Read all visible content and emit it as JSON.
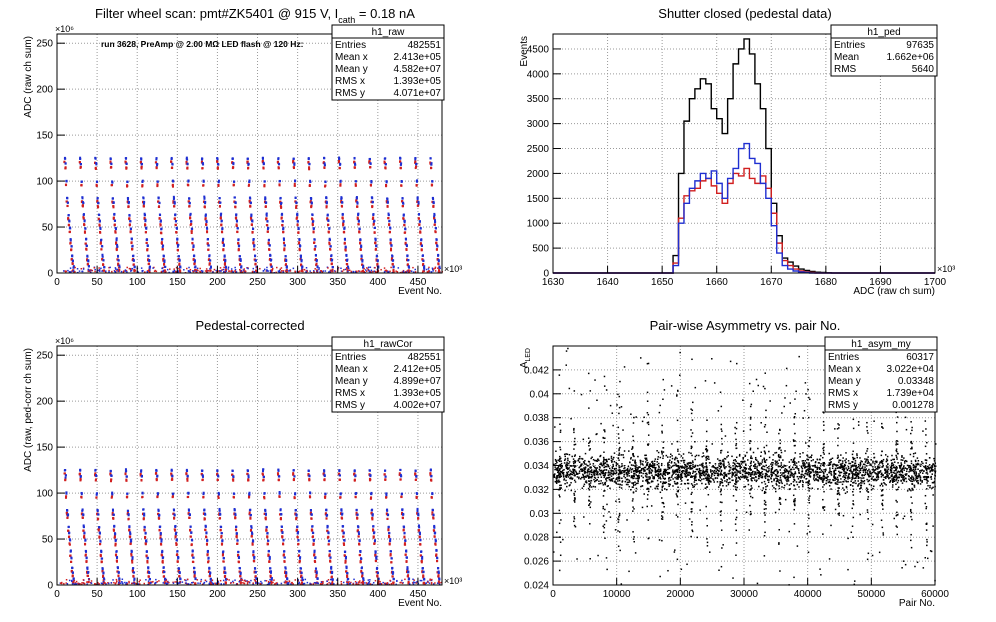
{
  "colors": {
    "black": "#000000",
    "red": "#d11f1f",
    "blue": "#1f2fd1",
    "grid": "#9a9a9a"
  },
  "chart_data": [
    {
      "id": "raw",
      "type": "scatter",
      "title_parts": [
        "Filter wheel scan: pmt#ZK5401 @   915 V, I",
        "cath",
        " = 0.18 nA"
      ],
      "xlabel": "Event No.",
      "ylabel": "ADC (raw ch sum)",
      "x_exponent": "×10³",
      "y_exponent": "×10⁶",
      "annotation": "run 3628, PreAmp @ 2.00 MΩ LED flash @  120 Hz:",
      "grid": true,
      "xlim": [
        0,
        480
      ],
      "ylim": [
        0,
        260
      ],
      "xticks": [
        0,
        50,
        100,
        150,
        200,
        250,
        300,
        350,
        400,
        450
      ],
      "yticks": [
        0,
        50,
        100,
        150,
        200,
        250
      ],
      "stats": {
        "name": "h1_raw",
        "rows": [
          [
            "Entries",
            "482551"
          ],
          [
            "Mean x",
            "2.413e+05"
          ],
          [
            "Mean y",
            "4.582e+07"
          ],
          [
            "RMS x",
            "1.393e+05"
          ],
          [
            "RMS y",
            "4.071e+07"
          ]
        ]
      },
      "pattern": {
        "period": 19,
        "first_cycle_start": 8,
        "cycles": 25,
        "levels": [
          123,
          117,
          98,
          80,
          75,
          62,
          55,
          47,
          35,
          28,
          17,
          12,
          5
        ],
        "series_colors": [
          "red",
          "blue"
        ]
      }
    },
    {
      "id": "ped",
      "type": "line",
      "title": "Shutter closed (pedestal data)",
      "xlabel": "ADC (raw ch sum)",
      "ylabel": "Events",
      "x_exponent": "×10³",
      "grid": true,
      "xlim": [
        1630,
        1700
      ],
      "ylim": [
        0,
        4800
      ],
      "xticks": [
        1630,
        1640,
        1650,
        1660,
        1670,
        1680,
        1690,
        1700
      ],
      "yticks": [
        0,
        500,
        1000,
        1500,
        2000,
        2500,
        3000,
        3500,
        4000,
        4500
      ],
      "stats": {
        "name": "h1_ped",
        "rows": [
          [
            "Entries",
            "97635"
          ],
          [
            "Mean",
            "1.662e+06"
          ],
          [
            "RMS",
            "5640"
          ]
        ]
      },
      "bins": [
        1650,
        1651,
        1652,
        1653,
        1654,
        1655,
        1656,
        1657,
        1658,
        1659,
        1660,
        1661,
        1662,
        1663,
        1664,
        1665,
        1666,
        1667,
        1668,
        1669,
        1670,
        1671,
        1672,
        1673,
        1674,
        1675,
        1676,
        1677,
        1678,
        1679,
        1680,
        1681
      ],
      "series": [
        {
          "color": "black",
          "values": [
            0,
            0,
            350,
            2000,
            3050,
            3500,
            3700,
            3900,
            3800,
            3300,
            3100,
            2800,
            3500,
            4200,
            4500,
            4700,
            4400,
            3800,
            3300,
            2500,
            1400,
            750,
            300,
            220,
            140,
            80,
            50,
            30,
            15,
            10,
            5,
            0
          ]
        },
        {
          "color": "red",
          "values": [
            0,
            0,
            200,
            1100,
            1550,
            1650,
            1700,
            1850,
            1900,
            1750,
            1600,
            1400,
            1800,
            2000,
            1950,
            2100,
            1900,
            1800,
            1950,
            1700,
            1200,
            600,
            250,
            150,
            80,
            40,
            20,
            10,
            0,
            0,
            0,
            0
          ]
        },
        {
          "color": "blue",
          "values": [
            0,
            0,
            150,
            1000,
            1400,
            1700,
            1850,
            2000,
            1900,
            2050,
            1800,
            1500,
            1900,
            2100,
            2500,
            2600,
            2300,
            2200,
            1800,
            1500,
            950,
            400,
            150,
            80,
            40,
            20,
            10,
            0,
            0,
            0,
            0,
            0
          ]
        }
      ]
    },
    {
      "id": "rawcor",
      "type": "scatter",
      "title": "Pedestal-corrected",
      "xlabel": "Event No.",
      "ylabel": "ADC (raw, ped-corr ch sum)",
      "x_exponent": "×10³",
      "y_exponent": "×10⁶",
      "grid": true,
      "xlim": [
        0,
        480
      ],
      "ylim": [
        0,
        260
      ],
      "xticks": [
        0,
        50,
        100,
        150,
        200,
        250,
        300,
        350,
        400,
        450
      ],
      "yticks": [
        0,
        50,
        100,
        150,
        200,
        250
      ],
      "stats": {
        "name": "h1_rawCor",
        "rows": [
          [
            "Entries",
            "482551"
          ],
          [
            "Mean x",
            "2.412e+05"
          ],
          [
            "Mean y",
            "4.899e+07"
          ],
          [
            "RMS x",
            "1.393e+05"
          ],
          [
            "RMS y",
            "4.002e+07"
          ]
        ]
      },
      "pattern": {
        "period": 19,
        "first_cycle_start": 8,
        "cycles": 25,
        "levels": [
          123,
          117,
          98,
          80,
          75,
          62,
          55,
          47,
          35,
          28,
          17,
          12,
          5
        ],
        "series_colors": [
          "red",
          "blue"
        ]
      }
    },
    {
      "id": "asym",
      "type": "scatter",
      "title": "Pair-wise Asymmetry vs. pair No.",
      "xlabel": "Pair No.",
      "ylabel": "A",
      "ylabel_sub": "LED",
      "grid": true,
      "xlim": [
        0,
        60000
      ],
      "ylim": [
        0.024,
        0.044
      ],
      "xticks": [
        0,
        10000,
        20000,
        30000,
        40000,
        50000,
        60000
      ],
      "yticks": [
        0.024,
        0.026,
        0.028,
        0.03,
        0.032,
        0.034,
        0.036,
        0.038,
        0.04,
        0.042
      ],
      "stats": {
        "name": "h1_asym_my",
        "rows": [
          [
            "Entries",
            "60317"
          ],
          [
            "Mean x",
            "3.022e+04"
          ],
          [
            "Mean y",
            "0.03348"
          ],
          [
            "RMS x",
            "1.739e+04"
          ],
          [
            "RMS y",
            "0.001278"
          ]
        ]
      },
      "band": {
        "center": 0.03348,
        "spread": 0.0012,
        "spike_period": 2300,
        "spike_first": 1000
      }
    }
  ]
}
